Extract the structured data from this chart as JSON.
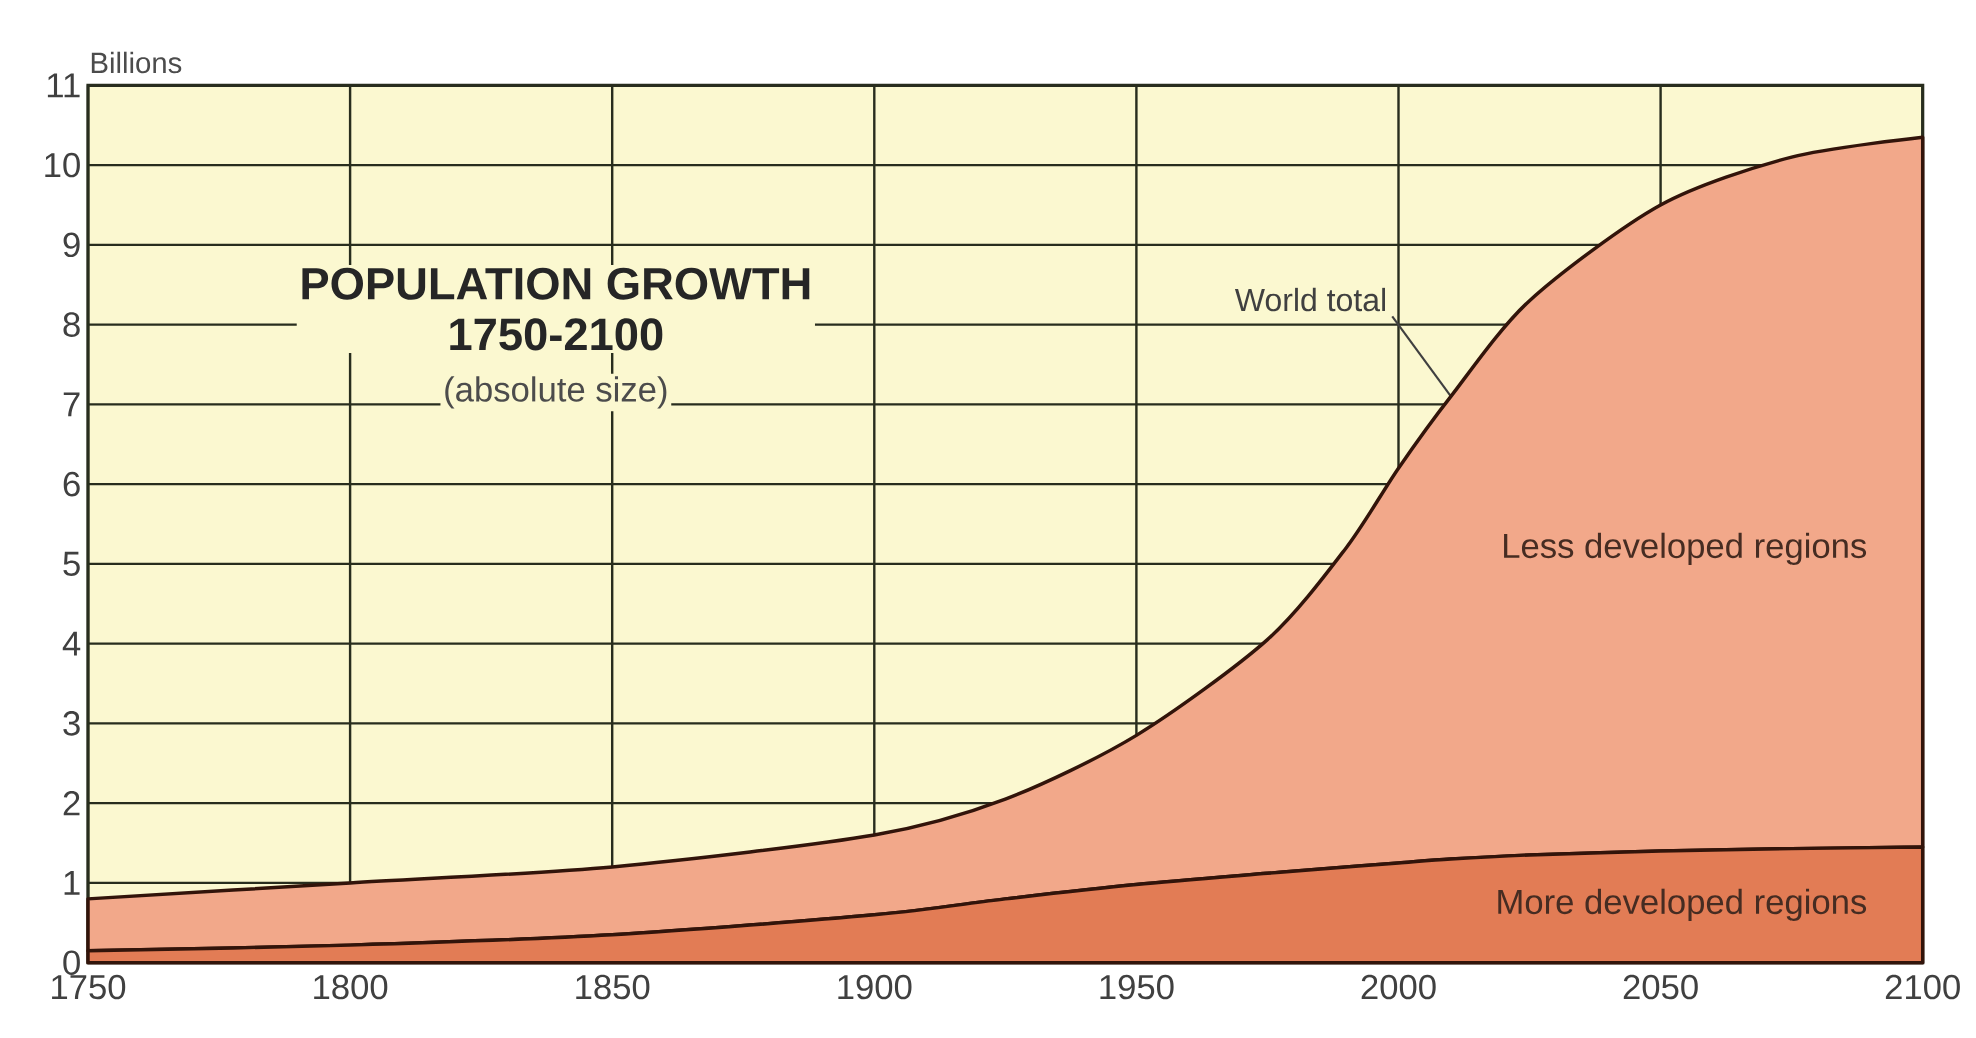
{
  "chart_data": {
    "type": "area",
    "title": "POPULATION GROWTH",
    "subtitle": "1750-2100",
    "ylabel": "Billions",
    "annotations": [
      "(absolute size)",
      {
        "text": "World total",
        "x": 2010,
        "y": 7.1
      }
    ],
    "x": [
      1750,
      1800,
      1850,
      1900,
      1925,
      1950,
      1975,
      1990,
      2000,
      2010,
      2025,
      2050,
      2075,
      2100
    ],
    "stacked": true,
    "series": [
      {
        "name": "More developed regions",
        "color": "#e27c55",
        "values": [
          0.15,
          0.22,
          0.35,
          0.6,
          0.8,
          0.98,
          1.12,
          1.2,
          1.25,
          1.3,
          1.35,
          1.4,
          1.43,
          1.45
        ]
      },
      {
        "name": "Less developed regions",
        "color": "#f2a88a",
        "values": [
          0.65,
          0.78,
          0.85,
          1.0,
          1.25,
          1.87,
          2.93,
          4.0,
          4.95,
          5.8,
          6.95,
          8.1,
          8.67,
          8.9
        ]
      }
    ],
    "xlim": [
      1750,
      2100
    ],
    "ylim": [
      0,
      11
    ],
    "xticks": [
      1750,
      1800,
      1850,
      1900,
      1950,
      2000,
      2050,
      2100
    ],
    "yticks": [
      0,
      1,
      2,
      3,
      4,
      5,
      6,
      7,
      8,
      9,
      10,
      11
    ],
    "grid": true
  }
}
